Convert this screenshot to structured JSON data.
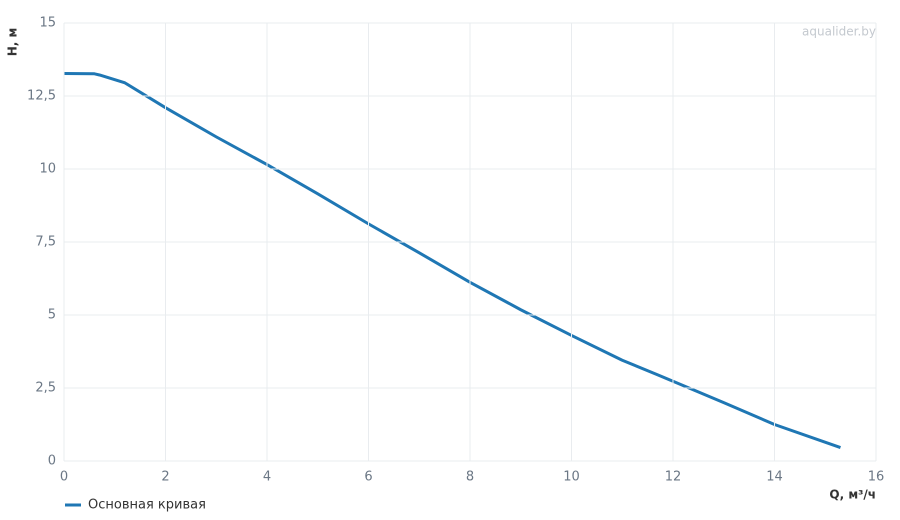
{
  "chart_data": {
    "type": "line",
    "watermark": "aqualider.by",
    "x_label": "Q, м³/ч",
    "y_label": "H, м",
    "x": [
      0,
      0.6,
      0.7,
      1.2,
      2,
      3,
      4,
      5,
      6,
      7,
      8,
      9,
      10,
      11,
      11.7,
      12,
      13,
      14,
      15.3
    ],
    "series": [
      {
        "name": "Основная кривая",
        "color": "#1f77b4",
        "values": [
          13.27,
          13.26,
          13.22,
          12.95,
          12.1,
          11.1,
          10.15,
          9.15,
          8.12,
          7.13,
          6.12,
          5.18,
          4.3,
          3.45,
          2.95,
          2.73,
          2.0,
          1.25,
          0.46
        ]
      }
    ],
    "xlim": [
      0,
      16
    ],
    "xticks": [
      0,
      2,
      4,
      6,
      8,
      10,
      12,
      14,
      16
    ],
    "ylim": [
      0,
      15
    ],
    "yticks": [
      0,
      {
        "value": 2.5,
        "label": "2,5"
      },
      5,
      {
        "value": 7.5,
        "label": "7,5"
      },
      10,
      {
        "value": 12.5,
        "label": "12,5"
      },
      15
    ],
    "grid": true
  }
}
